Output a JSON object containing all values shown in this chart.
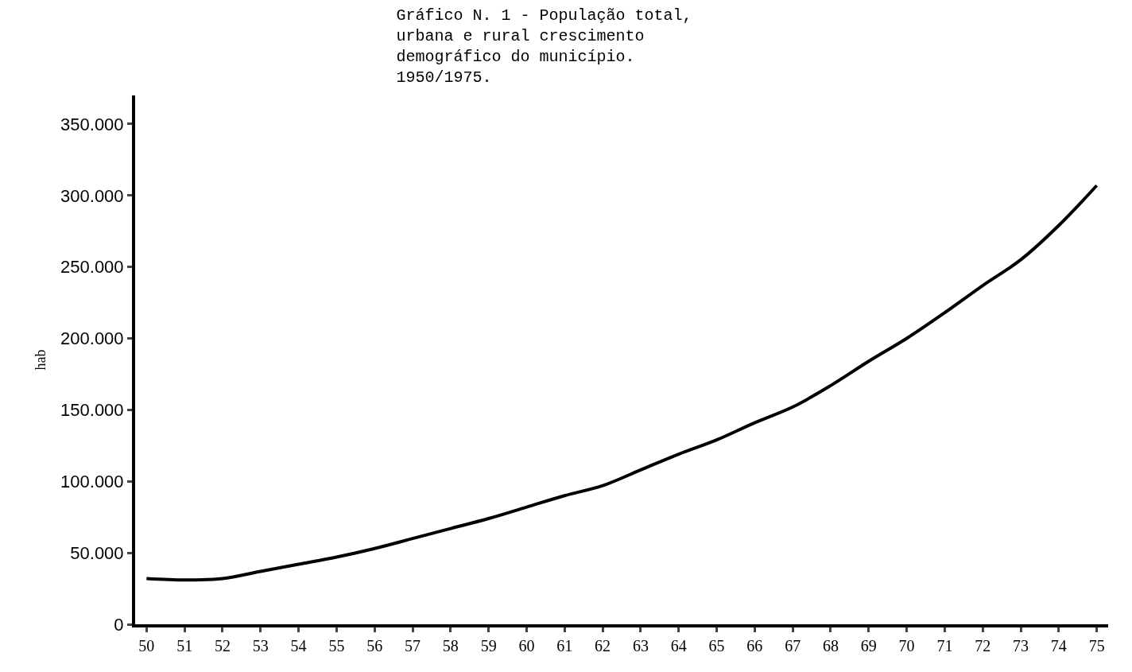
{
  "chart_data": {
    "type": "line",
    "title": "Gráfico N. 1 - População total, urbana e rural crescimento demográfico do município. 1950/1975.",
    "ylabel": "hab",
    "categories": [
      "50",
      "51",
      "52",
      "53",
      "54",
      "55",
      "56",
      "57",
      "58",
      "59",
      "60",
      "61",
      "62",
      "63",
      "64",
      "65",
      "66",
      "67",
      "68",
      "69",
      "70",
      "71",
      "72",
      "73",
      "74",
      "75"
    ],
    "series": [
      {
        "color": "#000000",
        "values": [
          32000,
          31000,
          32000,
          37000,
          42000,
          47000,
          53000,
          60000,
          67000,
          74000,
          82000,
          90000,
          97000,
          108000,
          119000,
          129000,
          141000,
          152000,
          167000,
          184000,
          200000,
          218000,
          237000,
          255000,
          279000,
          307000
        ]
      }
    ],
    "ylim": [
      0,
      370000
    ],
    "yticks": [
      0,
      {
        "value": 50000,
        "label": "50.000"
      },
      {
        "value": 100000,
        "label": "100.000"
      },
      {
        "value": 150000,
        "label": "150.000"
      },
      {
        "value": 200000,
        "label": "200.000"
      },
      {
        "value": 250000,
        "label": "250.000"
      },
      {
        "value": 300000,
        "label": "300.000"
      },
      {
        "value": 350000,
        "label": "350.000"
      }
    ],
    "legend": false,
    "marker": "none",
    "line_style": "solid"
  }
}
